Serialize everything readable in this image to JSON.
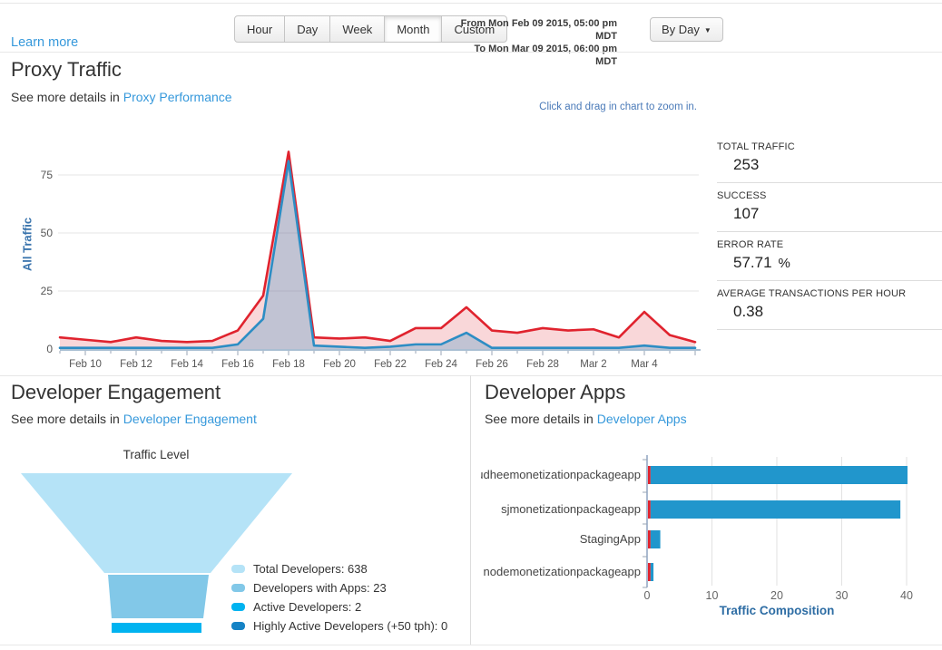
{
  "header": {
    "learn_more": "Learn more",
    "range_buttons": [
      {
        "label": "Hour",
        "active": false
      },
      {
        "label": "Day",
        "active": false
      },
      {
        "label": "Week",
        "active": false
      },
      {
        "label": "Month",
        "active": true
      },
      {
        "label": "Custom",
        "active": false
      }
    ],
    "date_from": "From Mon Feb 09 2015, 05:00 pm MDT",
    "date_to": "To Mon Mar 09 2015, 06:00 pm MDT",
    "granularity": "By Day",
    "caret": "▼"
  },
  "proxy_traffic": {
    "title": "Proxy Traffic",
    "see_more_prefix": "See more details in",
    "see_more_link": "Proxy Performance",
    "zoom_hint": "Click and drag in chart to zoom in.",
    "stats": [
      {
        "label": "TOTAL TRAFFIC",
        "value": "253",
        "suffix": ""
      },
      {
        "label": "SUCCESS",
        "value": "107",
        "suffix": ""
      },
      {
        "label": "ERROR RATE",
        "value": "57.71",
        "suffix": "%"
      },
      {
        "label": "AVERAGE TRANSACTIONS PER HOUR",
        "value": "0.38",
        "suffix": ""
      }
    ]
  },
  "developer_engagement": {
    "title": "Developer Engagement",
    "see_more_prefix": "See more details in",
    "see_more_link": "Developer Engagement"
  },
  "developer_apps": {
    "title": "Developer Apps",
    "see_more_prefix": "See more details in",
    "see_more_link": "Developer Apps"
  },
  "chart_data": [
    {
      "type": "area",
      "title": "Proxy Traffic",
      "ylabel": "All Traffic",
      "ylim": [
        0,
        87
      ],
      "yticks": [
        0,
        25,
        50,
        75
      ],
      "grid": true,
      "x": [
        "Feb 9",
        "Feb 10",
        "Feb 11",
        "Feb 12",
        "Feb 13",
        "Feb 14",
        "Feb 15",
        "Feb 16",
        "Feb 17",
        "Feb 18",
        "Feb 19",
        "Feb 20",
        "Feb 21",
        "Feb 22",
        "Feb 23",
        "Feb 24",
        "Feb 25",
        "Feb 26",
        "Feb 27",
        "Feb 28",
        "Mar 1",
        "Mar 2",
        "Mar 3",
        "Mar 4",
        "Mar 5",
        "Mar 6"
      ],
      "xticks": [
        {
          "day": 1,
          "label": "Feb 10"
        },
        {
          "day": 3,
          "label": "Feb 12"
        },
        {
          "day": 5,
          "label": "Feb 14"
        },
        {
          "day": 7,
          "label": "Feb 16"
        },
        {
          "day": 9,
          "label": "Feb 18"
        },
        {
          "day": 11,
          "label": "Feb 20"
        },
        {
          "day": 13,
          "label": "Feb 22"
        },
        {
          "day": 15,
          "label": "Feb 24"
        },
        {
          "day": 17,
          "label": "Feb 26"
        },
        {
          "day": 19,
          "label": "Feb 28"
        },
        {
          "day": 21,
          "label": "Mar 2"
        },
        {
          "day": 23,
          "label": "Mar 4"
        }
      ],
      "series": [
        {
          "name": "Total Traffic",
          "color": "#e0232e",
          "fill": "rgba(224,35,46,0.18)",
          "values": [
            5,
            4,
            3,
            5,
            3.5,
            3,
            3.5,
            8,
            23,
            85,
            5,
            4.5,
            5,
            3.5,
            9,
            9,
            18,
            8,
            7,
            9,
            8,
            8.5,
            5,
            16,
            6,
            3
          ]
        },
        {
          "name": "Success",
          "color": "#2d8dc4",
          "fill": "rgba(45,141,196,0.27)",
          "values": [
            0.5,
            0.5,
            0.5,
            0.5,
            0.5,
            0.5,
            0.5,
            2,
            13,
            81,
            1.5,
            1,
            0.5,
            1,
            2,
            2,
            7,
            0.5,
            0.5,
            0.5,
            0.5,
            0.5,
            0.5,
            1.5,
            0.5,
            0.5
          ]
        }
      ]
    },
    {
      "type": "funnel",
      "title": "Traffic Level",
      "stages": [
        {
          "label": "Total Developers",
          "value": 638,
          "color": "#b5e3f7"
        },
        {
          "label": "Developers with Apps",
          "value": 23,
          "color": "#82c8e8"
        },
        {
          "label": "Active Developers",
          "value": 2,
          "color": "#00b3f0"
        },
        {
          "label": "Highly Active Developers (+50 tph)",
          "value": 0,
          "color": "#1583c5"
        }
      ]
    },
    {
      "type": "bar",
      "orientation": "horizontal",
      "xlabel": "Traffic Composition",
      "xlim": [
        0,
        41
      ],
      "xticks": [
        0,
        10,
        20,
        30,
        40
      ],
      "categories": [
        "sudheemonetizationpackageapp",
        "sjmonetizationpackageapp",
        "StagingApp",
        "nodemonetizationpackageapp"
      ],
      "series": [
        {
          "name": "Errors",
          "color": "#e0232e",
          "values": [
            0.4,
            0.4,
            0.4,
            0.4
          ]
        },
        {
          "name": "Traffic",
          "color": "#2196cc",
          "values": [
            39.6,
            38.5,
            1.5,
            0.45
          ]
        }
      ]
    }
  ]
}
